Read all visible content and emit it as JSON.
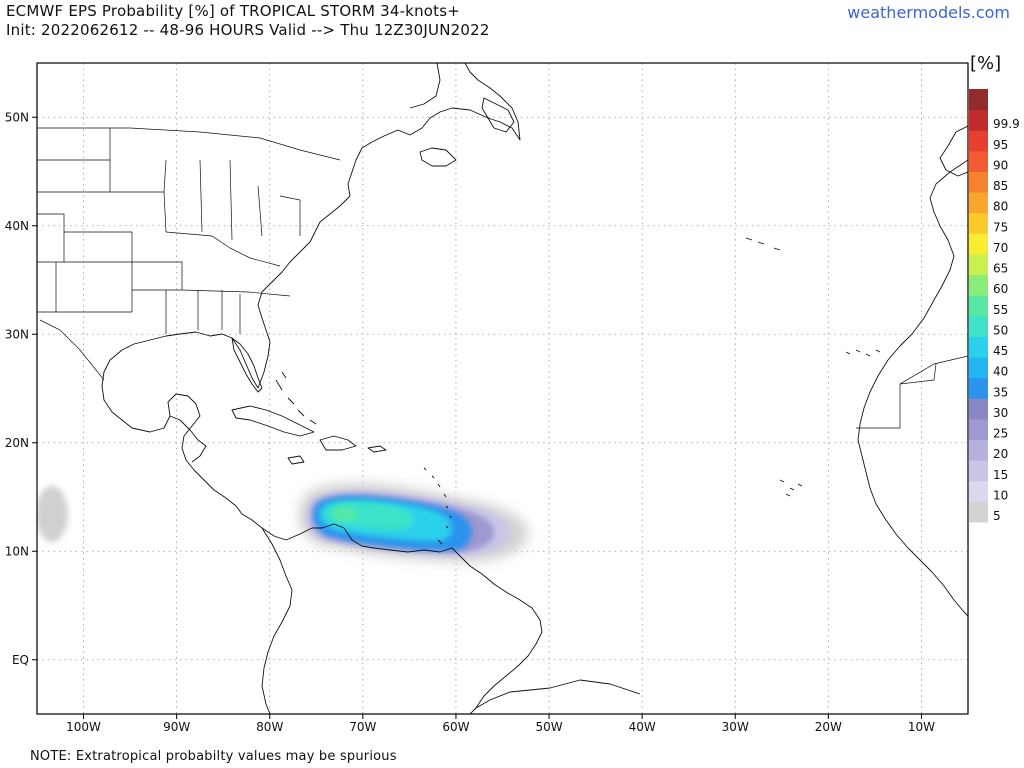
{
  "header": {
    "title_line1": "ECMWF EPS Probability [%] of TROPICAL STORM 34-knots+",
    "title_line2": "Init: 2022062612 -- 48-96 HOURS Valid --> Thu 12Z30JUN2022",
    "brand": "weathermodels.com"
  },
  "footer": {
    "note": "NOTE: Extratropical probabilty values may be spurious"
  },
  "map": {
    "lon_min": -105,
    "lon_max": -5,
    "lat_min": -5,
    "lat_max": 55,
    "lat_ticks": [
      {
        "lat": 50,
        "label": "50N"
      },
      {
        "lat": 40,
        "label": "40N"
      },
      {
        "lat": 30,
        "label": "30N"
      },
      {
        "lat": 20,
        "label": "20N"
      },
      {
        "lat": 10,
        "label": "10N"
      },
      {
        "lat": 0,
        "label": "EQ"
      }
    ],
    "lon_ticks": [
      {
        "lon": -100,
        "label": "100W"
      },
      {
        "lon": -90,
        "label": "90W"
      },
      {
        "lon": -80,
        "label": "80W"
      },
      {
        "lon": -70,
        "label": "70W"
      },
      {
        "lon": -60,
        "label": "60W"
      },
      {
        "lon": -50,
        "label": "50W"
      },
      {
        "lon": -40,
        "label": "40W"
      },
      {
        "lon": -30,
        "label": "30W"
      },
      {
        "lon": -20,
        "label": "20W"
      },
      {
        "lon": -10,
        "label": "10W"
      }
    ]
  },
  "colorbar": {
    "unit": "[%]",
    "levels": [
      {
        "label": "5",
        "color": "#d3d3d3"
      },
      {
        "label": "10",
        "color": "#dcd9ef"
      },
      {
        "label": "15",
        "color": "#c9c6e8"
      },
      {
        "label": "20",
        "color": "#b4b1de"
      },
      {
        "label": "25",
        "color": "#9d99d2"
      },
      {
        "label": "30",
        "color": "#8a87c7"
      },
      {
        "label": "35",
        "color": "#2a93ee"
      },
      {
        "label": "40",
        "color": "#22b6f2"
      },
      {
        "label": "45",
        "color": "#2bd1ea"
      },
      {
        "label": "50",
        "color": "#3ee3c8"
      },
      {
        "label": "55",
        "color": "#58e8a4"
      },
      {
        "label": "60",
        "color": "#8cec78"
      },
      {
        "label": "65",
        "color": "#c8f04e"
      },
      {
        "label": "70",
        "color": "#f6ee2f"
      },
      {
        "label": "75",
        "color": "#fbc92b"
      },
      {
        "label": "80",
        "color": "#f9a62e"
      },
      {
        "label": "85",
        "color": "#f68230"
      },
      {
        "label": "90",
        "color": "#f25c31"
      },
      {
        "label": "95",
        "color": "#e8402f"
      },
      {
        "label": "99.9",
        "color": "#c12b2b"
      },
      {
        "label": "",
        "color": "#922b2b"
      }
    ]
  }
}
